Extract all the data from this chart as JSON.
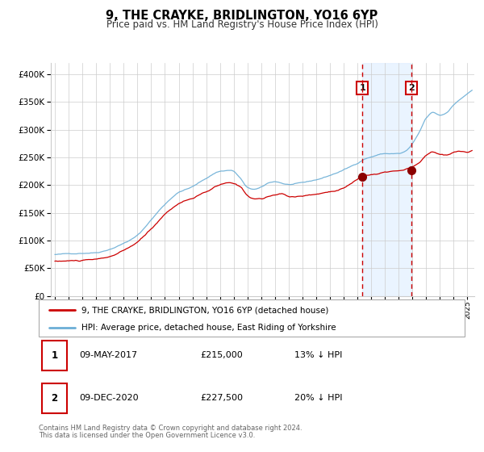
{
  "title": "9, THE CRAYKE, BRIDLINGTON, YO16 6YP",
  "subtitle": "Price paid vs. HM Land Registry's House Price Index (HPI)",
  "hpi_color": "#6baed6",
  "property_color": "#cc0000",
  "marker_color": "#8b0000",
  "vline_color": "#cc0000",
  "shade_color": "#ddeeff",
  "ylabel_ticks": [
    "£0",
    "£50K",
    "£100K",
    "£150K",
    "£200K",
    "£250K",
    "£300K",
    "£350K",
    "£400K"
  ],
  "ytick_values": [
    0,
    50000,
    100000,
    150000,
    200000,
    250000,
    300000,
    350000,
    400000
  ],
  "ylim": [
    0,
    420000
  ],
  "xlim_start": 1994.7,
  "xlim_end": 2025.5,
  "event1_x": 2017.35,
  "event2_x": 2020.93,
  "event1_price": 215000,
  "event2_price": 227500,
  "legend_line1": "9, THE CRAYKE, BRIDLINGTON, YO16 6YP (detached house)",
  "legend_line2": "HPI: Average price, detached house, East Riding of Yorkshire",
  "table_row1_num": "1",
  "table_row1_date": "09-MAY-2017",
  "table_row1_price": "£215,000",
  "table_row1_hpi": "13% ↓ HPI",
  "table_row2_num": "2",
  "table_row2_date": "09-DEC-2020",
  "table_row2_price": "£227,500",
  "table_row2_hpi": "20% ↓ HPI",
  "footnote1": "Contains HM Land Registry data © Crown copyright and database right 2024.",
  "footnote2": "This data is licensed under the Open Government Licence v3.0.",
  "bg_color": "#ffffff",
  "grid_color": "#cccccc",
  "box_color": "#cc0000"
}
